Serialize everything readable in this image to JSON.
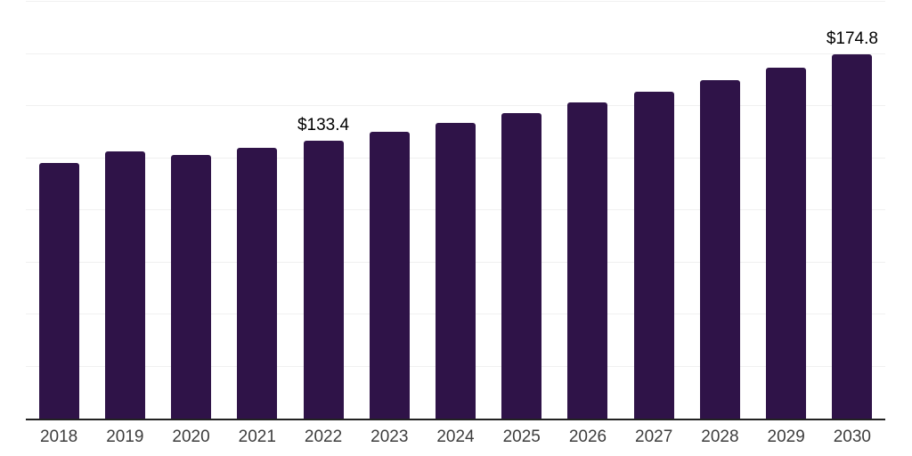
{
  "chart_data": {
    "type": "bar",
    "title": "",
    "xlabel": "",
    "ylabel": "",
    "categories": [
      "2018",
      "2019",
      "2020",
      "2021",
      "2022",
      "2023",
      "2024",
      "2025",
      "2026",
      "2027",
      "2028",
      "2029",
      "2030"
    ],
    "values": [
      122.6,
      128.2,
      126.5,
      130.0,
      133.4,
      137.6,
      141.8,
      146.4,
      151.6,
      156.9,
      162.3,
      168.3,
      174.8
    ],
    "labeled_points": [
      {
        "category": "2022",
        "label": "$133.4"
      },
      {
        "category": "2030",
        "label": "$174.8"
      }
    ],
    "currency_prefix": "$",
    "ylim": [
      0,
      200
    ],
    "gridline_step": 25,
    "grid": true,
    "legend_position": "none",
    "bar_color": "#2F1348",
    "gridline_color": "#f0f0f0",
    "axis_line_color": "#222222",
    "tick_label_color": "#3d3d3d",
    "data_label_color": "#000000",
    "background_color": "#ffffff"
  }
}
